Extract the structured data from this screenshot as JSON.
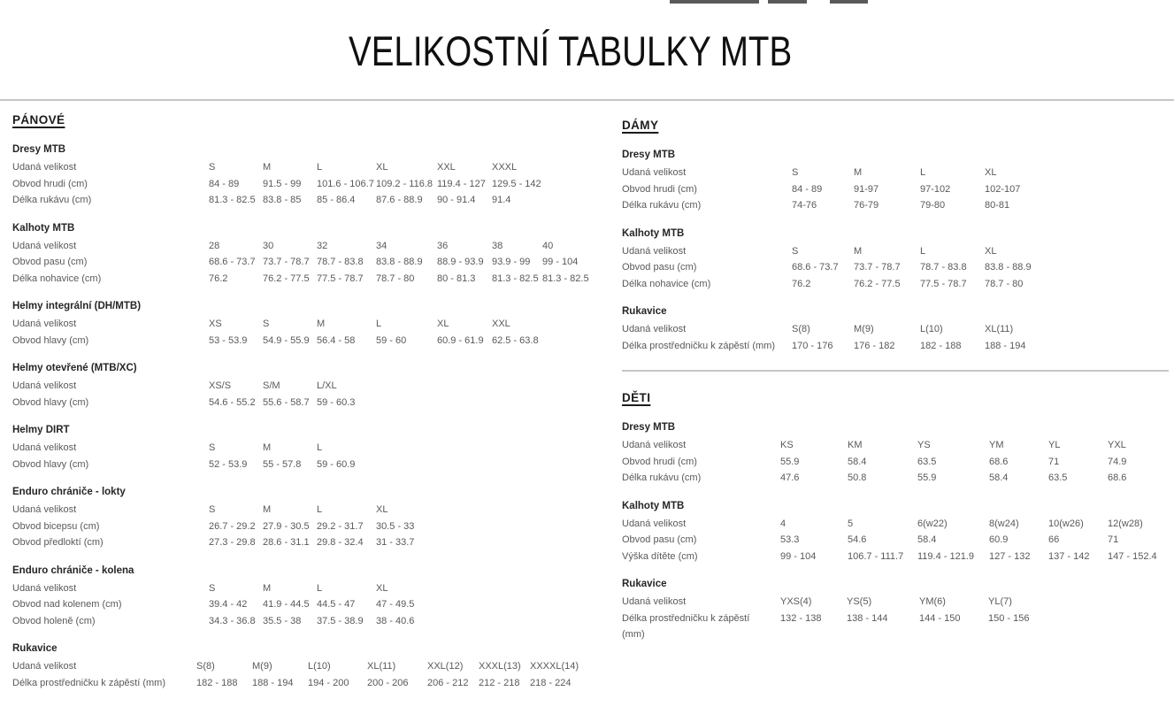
{
  "page": {
    "title": "VELIKOSTNÍ TABULKY MTB"
  },
  "colors": {
    "divider": "#c6c6c6",
    "heading_text": "#1c1c1c",
    "body_text": "#595959"
  },
  "men": {
    "header": "PÁNOVÉ",
    "tables": [
      {
        "title": "Dresy MTB",
        "layout": "t-men",
        "rows": [
          {
            "label": "Udaná velikost",
            "values": [
              "S",
              "M",
              "L",
              "XL",
              "XXL",
              "XXXL"
            ]
          },
          {
            "label": "Obvod hrudi (cm)",
            "values": [
              "84 - 89",
              "91.5 - 99",
              "101.6 - 106.7",
              "109.2 - 116.8",
              "119.4 - 127",
              "129.5 - 142"
            ]
          },
          {
            "label": "Délka rukávu (cm)",
            "values": [
              "81.3 - 82.5",
              "83.8 - 85",
              "85 - 86.4",
              "87.6 - 88.9",
              "90 - 91.4",
              "91.4"
            ]
          }
        ]
      },
      {
        "title": "Kalhoty MTB",
        "layout": "t-men",
        "rows": [
          {
            "label": "Udaná velikost",
            "values": [
              "28",
              "30",
              "32",
              "34",
              "36",
              "38",
              "40"
            ]
          },
          {
            "label": "Obvod pasu (cm)",
            "values": [
              "68.6 - 73.7",
              "73.7 - 78.7",
              "78.7 - 83.8",
              "83.8 - 88.9",
              "88.9 - 93.9",
              "93.9 - 99",
              "99 - 104"
            ]
          },
          {
            "label": "Délka nohavice (cm)",
            "values": [
              "76.2",
              "76.2 - 77.5",
              "77.5 - 78.7",
              "78.7 - 80",
              "80 - 81.3",
              "81.3 - 82.5",
              "81.3 - 82.5"
            ]
          }
        ]
      },
      {
        "title": "Helmy integrální (DH/MTB)",
        "layout": "t-men",
        "rows": [
          {
            "label": "Udaná velikost",
            "values": [
              "XS",
              "S",
              "M",
              "L",
              "XL",
              "XXL"
            ]
          },
          {
            "label": "Obvod hlavy (cm)",
            "values": [
              "53 - 53.9",
              "54.9 - 55.9",
              "56.4 - 58",
              "59 - 60",
              "60.9 - 61.9",
              "62.5 - 63.8"
            ]
          }
        ]
      },
      {
        "title": "Helmy otevřené (MTB/XC)",
        "layout": "t-men",
        "rows": [
          {
            "label": "Udaná velikost",
            "values": [
              "XS/S",
              "S/M",
              "L/XL"
            ]
          },
          {
            "label": "Obvod hlavy (cm)",
            "values": [
              "54.6 - 55.2",
              "55.6 - 58.7",
              "59 - 60.3"
            ]
          }
        ]
      },
      {
        "title": "Helmy DIRT",
        "layout": "t-men",
        "rows": [
          {
            "label": "Udaná velikost",
            "values": [
              "S",
              "M",
              "L"
            ]
          },
          {
            "label": "Obvod hlavy (cm)",
            "values": [
              "52 - 53.9",
              "55 - 57.8",
              "59 - 60.9"
            ]
          }
        ]
      },
      {
        "title": "Enduro chrániče - lokty",
        "layout": "t-men",
        "rows": [
          {
            "label": "Udaná velikost",
            "values": [
              "S",
              "M",
              "L",
              "XL"
            ]
          },
          {
            "label": "Obvod bicepsu (cm)",
            "values": [
              "26.7 - 29.2",
              "27.9 - 30.5",
              "29.2 - 31.7",
              "30.5 - 33"
            ]
          },
          {
            "label": "Obvod předloktí (cm)",
            "values": [
              "27.3 - 29.8",
              "28.6 - 31.1",
              "29.8 - 32.4",
              "31 - 33.7"
            ]
          }
        ]
      },
      {
        "title": "Enduro chrániče - kolena",
        "layout": "t-men",
        "rows": [
          {
            "label": "Udaná velikost",
            "values": [
              "S",
              "M",
              "L",
              "XL"
            ]
          },
          {
            "label": "Obvod nad kolenem (cm)",
            "values": [
              "39.4 - 42",
              "41.9 - 44.5",
              "44.5 - 47",
              "47 - 49.5"
            ]
          },
          {
            "label": "Obvod holeně (cm)",
            "values": [
              "34.3 - 36.8",
              "35.5 - 38",
              "37.5 - 38.9",
              "38 - 40.6"
            ]
          }
        ]
      },
      {
        "title": "Rukavice",
        "layout": "t-men-g",
        "rows": [
          {
            "label": "Udaná velikost",
            "values": [
              "S(8)",
              "M(9)",
              "L(10)",
              "XL(11)",
              "XXL(12)",
              "XXXL(13)",
              "XXXXL(14)"
            ]
          },
          {
            "label": "Délka prostředničku k zápěstí (mm)",
            "values": [
              "182 - 188",
              "188 - 194",
              "194 - 200",
              "200 - 206",
              "206 - 212",
              "212 - 218",
              "218 - 224"
            ]
          }
        ]
      }
    ]
  },
  "women": {
    "header": "DÁMY",
    "tables": [
      {
        "title": "Dresy MTB",
        "layout": "t-women",
        "rows": [
          {
            "label": "Udaná velikost",
            "values": [
              "S",
              "M",
              "L",
              "XL"
            ]
          },
          {
            "label": "Obvod hrudi (cm)",
            "values": [
              "84 - 89",
              "91-97",
              "97-102",
              "102-107"
            ]
          },
          {
            "label": "Délka rukávu (cm)",
            "values": [
              "74-76",
              "76-79",
              "79-80",
              "80-81"
            ]
          }
        ]
      },
      {
        "title": "Kalhoty MTB",
        "layout": "t-women",
        "rows": [
          {
            "label": "Udaná velikost",
            "values": [
              "S",
              "M",
              "L",
              "XL"
            ]
          },
          {
            "label": "Obvod pasu (cm)",
            "values": [
              "68.6 - 73.7",
              "73.7 - 78.7",
              "78.7 - 83.8",
              "83.8 - 88.9"
            ]
          },
          {
            "label": "Délka nohavice (cm)",
            "values": [
              "76.2",
              "76.2 - 77.5",
              "77.5 - 78.7",
              "78.7 - 80"
            ]
          }
        ]
      },
      {
        "title": "Rukavice",
        "layout": "t-women",
        "rows": [
          {
            "label": "Udaná velikost",
            "values": [
              "S(8)",
              "M(9)",
              "L(10)",
              "XL(11)"
            ]
          },
          {
            "label": "Délka prostředničku k zápěstí (mm)",
            "values": [
              "170 - 176",
              "176 - 182",
              "182 - 188",
              "188 - 194"
            ]
          }
        ]
      }
    ]
  },
  "kids": {
    "header": "DĚTI",
    "tables": [
      {
        "title": "Dresy MTB",
        "layout": "t-kids6",
        "rows": [
          {
            "label": "Udaná velikost",
            "values": [
              "KS",
              "KM",
              "YS",
              "YM",
              "YL",
              "YXL"
            ]
          },
          {
            "label": "Obvod hrudi (cm)",
            "values": [
              "55.9",
              "58.4",
              "63.5",
              "68.6",
              "71",
              "74.9"
            ]
          },
          {
            "label": "Délka rukávu (cm)",
            "values": [
              "47.6",
              "50.8",
              "55.9",
              "58.4",
              "63.5",
              "68.6"
            ]
          }
        ]
      },
      {
        "title": "Kalhoty MTB",
        "layout": "t-kids6",
        "rows": [
          {
            "label": "Udaná velikost",
            "values": [
              "4",
              "5",
              "6(w22)",
              "8(w24)",
              "10(w26)",
              "12(w28)"
            ]
          },
          {
            "label": "Obvod pasu (cm)",
            "values": [
              "53.3",
              "54.6",
              "58.4",
              "60.9",
              "66",
              "71"
            ]
          },
          {
            "label": "Výška dítěte (cm)",
            "values": [
              "99 - 104",
              "106.7 - 111.7",
              "119.4 - 121.9",
              "127 - 132",
              "137 - 142",
              "147 - 152.4"
            ]
          }
        ]
      },
      {
        "title": "Rukavice",
        "layout": "t-kids4",
        "rows": [
          {
            "label": "Udaná velikost",
            "values": [
              "YXS(4)",
              "YS(5)",
              "YM(6)",
              "YL(7)"
            ]
          },
          {
            "label": "Délka prostředničku k zápěstí (mm)",
            "values": [
              "132 - 138",
              "138 - 144",
              "144 - 150",
              "150 - 156"
            ]
          }
        ]
      }
    ]
  }
}
